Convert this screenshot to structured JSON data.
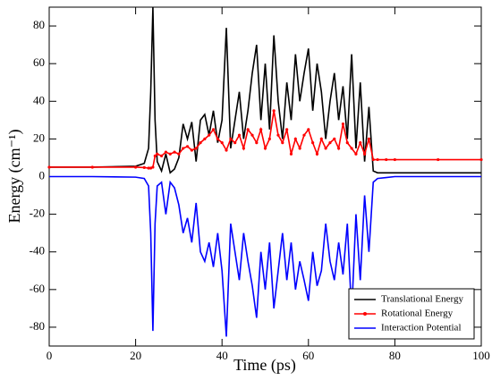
{
  "chart_data": {
    "type": "line",
    "xlabel": "Time (ps)",
    "ylabel": "Energy (cm⁻¹)",
    "x": [
      0,
      10,
      20,
      22,
      23,
      23.5,
      24,
      24.5,
      25,
      26,
      27,
      28,
      29,
      30,
      31,
      32,
      33,
      34,
      35,
      36,
      37,
      38,
      39,
      40,
      41,
      42,
      43,
      44,
      45,
      46,
      47,
      48,
      49,
      50,
      51,
      52,
      53,
      54,
      55,
      56,
      57,
      58,
      59,
      60,
      61,
      62,
      63,
      64,
      65,
      66,
      67,
      68,
      69,
      70,
      71,
      72,
      73,
      74,
      75,
      76,
      78,
      80,
      90,
      100
    ],
    "series": [
      {
        "name": "Translational Energy",
        "color": "#000000",
        "marker": false,
        "values": [
          5,
          5,
          5.5,
          7,
          15,
          45,
          90,
          30,
          8,
          3,
          12,
          2,
          4,
          10,
          28,
          20,
          29,
          8,
          30,
          33,
          22,
          35,
          18,
          30,
          79,
          15,
          30,
          45,
          20,
          35,
          55,
          70,
          30,
          60,
          25,
          75,
          40,
          20,
          50,
          30,
          65,
          40,
          55,
          68,
          35,
          60,
          45,
          20,
          40,
          55,
          30,
          48,
          20,
          65,
          15,
          50,
          8,
          37,
          3,
          2,
          2,
          2,
          2,
          2
        ]
      },
      {
        "name": "Rotational Energy",
        "color": "#ff0000",
        "marker": true,
        "values": [
          5,
          5,
          5,
          4.8,
          4.5,
          4.5,
          5,
          11,
          12,
          11,
          13,
          12,
          13,
          12,
          15,
          16,
          14,
          15,
          18,
          20,
          22,
          25,
          20,
          18,
          14,
          20,
          18,
          22,
          15,
          25,
          22,
          18,
          25,
          15,
          20,
          35,
          22,
          18,
          25,
          12,
          20,
          15,
          22,
          25,
          18,
          12,
          20,
          15,
          18,
          20,
          15,
          28,
          18,
          15,
          12,
          18,
          12,
          20,
          9,
          9,
          9,
          9,
          9,
          9
        ]
      },
      {
        "name": "Interaction Potential",
        "color": "#0000ff",
        "marker": false,
        "values": [
          0,
          0,
          -0.3,
          -1,
          -5,
          -30,
          -82,
          -25,
          -5,
          -3,
          -20,
          -3,
          -6,
          -15,
          -30,
          -22,
          -35,
          -14,
          -40,
          -45,
          -35,
          -48,
          -30,
          -50,
          -85,
          -25,
          -40,
          -55,
          -30,
          -45,
          -58,
          -75,
          -40,
          -60,
          -35,
          -70,
          -50,
          -30,
          -55,
          -35,
          -60,
          -45,
          -55,
          -66,
          -40,
          -58,
          -50,
          -25,
          -45,
          -55,
          -35,
          -52,
          -25,
          -73,
          -20,
          -55,
          -10,
          -40,
          -3,
          -1,
          -0.5,
          0,
          0,
          0
        ]
      }
    ],
    "xlim": [
      0,
      100
    ],
    "xticks": [
      0,
      20,
      40,
      60,
      80,
      100
    ],
    "ylim": [
      -90,
      90
    ],
    "yticks": [
      -80,
      -60,
      -40,
      -20,
      0,
      20,
      40,
      60,
      80
    ],
    "legend": "lower right"
  }
}
